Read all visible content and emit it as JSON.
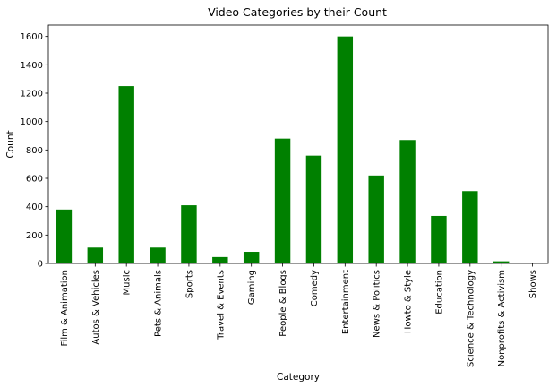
{
  "chart_data": {
    "type": "bar",
    "title": "Video Categories by their Count",
    "xlabel": "Category",
    "ylabel": "Count",
    "ylim": [
      0,
      1680
    ],
    "yticks": [
      0,
      200,
      400,
      600,
      800,
      1000,
      1200,
      1400,
      1600
    ],
    "bar_color": "#008000",
    "grid": false,
    "categories": [
      "Film & Animation",
      "Autos & Vehicles",
      "Music",
      "Pets & Animals",
      "Sports",
      "Travel & Events",
      "Gaming",
      "People & Blogs",
      "Comedy",
      "Entertainment",
      "News & Politics",
      "Howto & Style",
      "Education",
      "Science & Technology",
      "Nonprofits & Activism",
      "Shows"
    ],
    "values": [
      380,
      112,
      1250,
      112,
      410,
      45,
      82,
      880,
      760,
      1600,
      620,
      870,
      335,
      510,
      15,
      4
    ]
  }
}
